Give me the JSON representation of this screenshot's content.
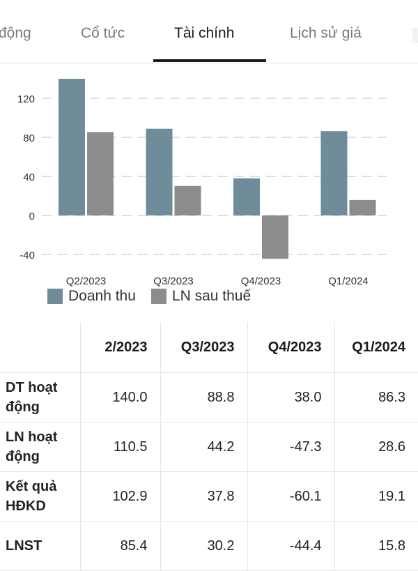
{
  "tabs": {
    "items": [
      {
        "label": "động",
        "active": false
      },
      {
        "label": "Cổ tức",
        "active": false
      },
      {
        "label": "Tài chính",
        "active": true
      },
      {
        "label": "Lịch sử giá",
        "active": false
      }
    ]
  },
  "colors": {
    "revenue": "#6f8c9a",
    "profit": "#8c8c8c",
    "grid": "#bdbdbd",
    "active_tab": "#1a1a1a"
  },
  "chart_data": {
    "type": "bar",
    "categories": [
      "Q2/2023",
      "Q3/2023",
      "Q4/2023",
      "Q1/2024"
    ],
    "series": [
      {
        "name": "Doanh thu",
        "values": [
          140.0,
          88.8,
          38.0,
          86.3
        ]
      },
      {
        "name": "LN sau thuế",
        "values": [
          85.4,
          30.2,
          -44.4,
          15.8
        ]
      }
    ],
    "yticks": [
      120,
      80,
      40,
      0,
      -40
    ],
    "ylim": [
      -45,
      140
    ],
    "grid": true,
    "legend": "bottom-left"
  },
  "table": {
    "columns": [
      "2/2023",
      "Q3/2023",
      "Q4/2023",
      "Q1/2024"
    ],
    "rows": [
      {
        "label": "DT hoạt động",
        "values": [
          "140.0",
          "88.8",
          "38.0",
          "86.3"
        ]
      },
      {
        "label": "LN hoạt động",
        "values": [
          "110.5",
          "44.2",
          "-47.3",
          "28.6"
        ]
      },
      {
        "label": "Kết quả HĐKD",
        "values": [
          "102.9",
          "37.8",
          "-60.1",
          "19.1"
        ]
      },
      {
        "label": "LNST",
        "values": [
          "85.4",
          "30.2",
          "-44.4",
          "15.8"
        ]
      }
    ]
  }
}
